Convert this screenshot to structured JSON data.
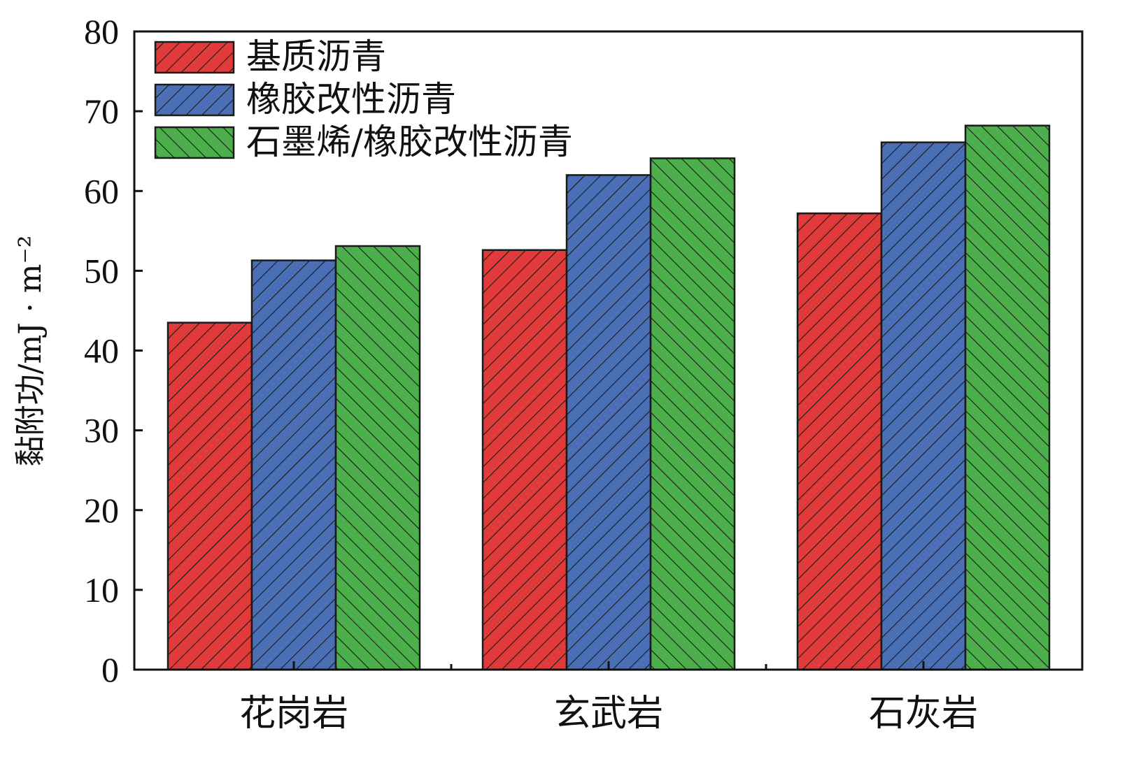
{
  "chart_data": {
    "type": "bar",
    "title": "",
    "xlabel": "",
    "ylabel": "黏附功/mJ · m⁻²",
    "ylim": [
      0,
      80
    ],
    "yticks": [
      0,
      10,
      20,
      30,
      40,
      50,
      60,
      70,
      80
    ],
    "categories": [
      "花岗岩",
      "玄武岩",
      "石灰岩"
    ],
    "series": [
      {
        "name": "基质沥青",
        "values": [
          43.5,
          52.6,
          57.2
        ],
        "color": "#e03a3a",
        "hatch": "diagonal-up"
      },
      {
        "name": "橡胶改性沥青",
        "values": [
          51.3,
          62.0,
          66.1
        ],
        "color": "#4a6fb5",
        "hatch": "diagonal-up"
      },
      {
        "name": "石墨烯/橡胶改性沥青",
        "values": [
          53.1,
          64.1,
          68.2
        ],
        "color": "#4caf4c",
        "hatch": "diagonal-down"
      }
    ],
    "legend_position": "top-left",
    "grid": false
  }
}
